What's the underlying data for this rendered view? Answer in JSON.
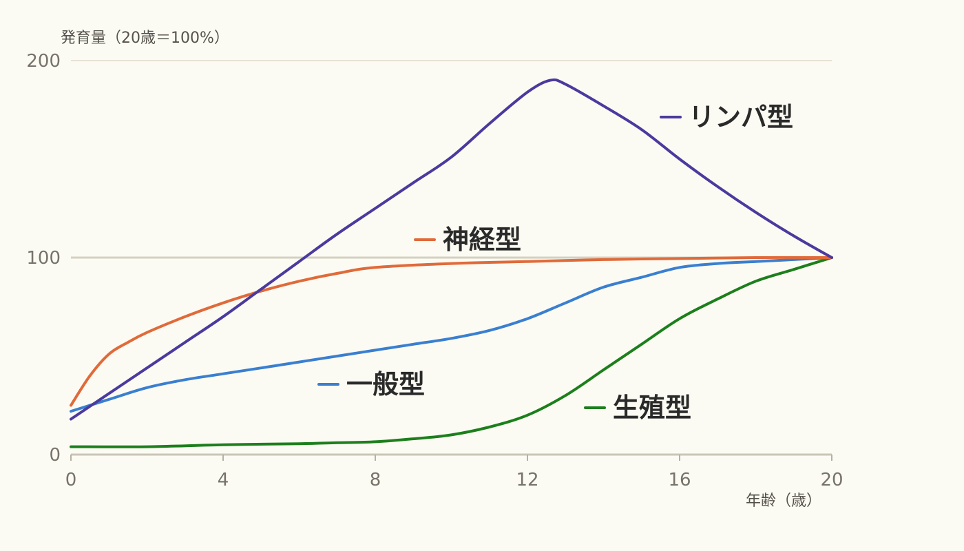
{
  "chart_data": {
    "type": "line",
    "ylabel": "発育量（20歳＝100%）",
    "xlabel": "年齢（歳）",
    "xlim": [
      0,
      20
    ],
    "ylim": [
      0,
      200
    ],
    "x_ticks": [
      "0",
      "4",
      "8",
      "12",
      "16",
      "20"
    ],
    "y_ticks": [
      "0",
      "100",
      "200"
    ],
    "grid": true,
    "series": [
      {
        "name": "リンパ型",
        "color": "#4b3a9e",
        "x": [
          0,
          1,
          2,
          3,
          4,
          5,
          6,
          7,
          8,
          9,
          10,
          11,
          12,
          12.6,
          13,
          14,
          15,
          16,
          17,
          18,
          19,
          20
        ],
        "y": [
          18,
          31,
          44,
          57,
          70,
          84,
          98,
          112,
          125,
          138,
          151,
          168,
          184,
          190,
          188,
          177,
          165,
          150,
          136,
          123,
          111,
          100
        ]
      },
      {
        "name": "神経型",
        "color": "#e06a3a",
        "x": [
          0,
          0.5,
          1,
          1.5,
          2,
          3,
          4,
          5,
          6,
          7,
          8,
          10,
          12,
          14,
          16,
          18,
          20
        ],
        "y": [
          25,
          40,
          51,
          57,
          62,
          70,
          77,
          83,
          88,
          92,
          95,
          97,
          98,
          99,
          99.5,
          100,
          100
        ]
      },
      {
        "name": "一般型",
        "color": "#3a7fd0",
        "x": [
          0,
          1,
          2,
          3,
          4,
          5,
          6,
          7,
          8,
          9,
          10,
          11,
          12,
          13,
          14,
          15,
          16,
          17,
          18,
          19,
          20
        ],
        "y": [
          22,
          28,
          34,
          38,
          41,
          44,
          47,
          50,
          53,
          56,
          59,
          63,
          69,
          77,
          85,
          90,
          95,
          97,
          98,
          99,
          100
        ]
      },
      {
        "name": "生殖型",
        "color": "#1c7f1c",
        "x": [
          0,
          2,
          4,
          6,
          7,
          8,
          9,
          10,
          11,
          12,
          13,
          14,
          15,
          16,
          17,
          18,
          19,
          20
        ],
        "y": [
          4,
          4,
          5,
          5.5,
          6,
          6.5,
          8,
          10,
          14,
          20,
          30,
          43,
          56,
          69,
          79,
          88,
          94,
          100
        ]
      }
    ]
  }
}
